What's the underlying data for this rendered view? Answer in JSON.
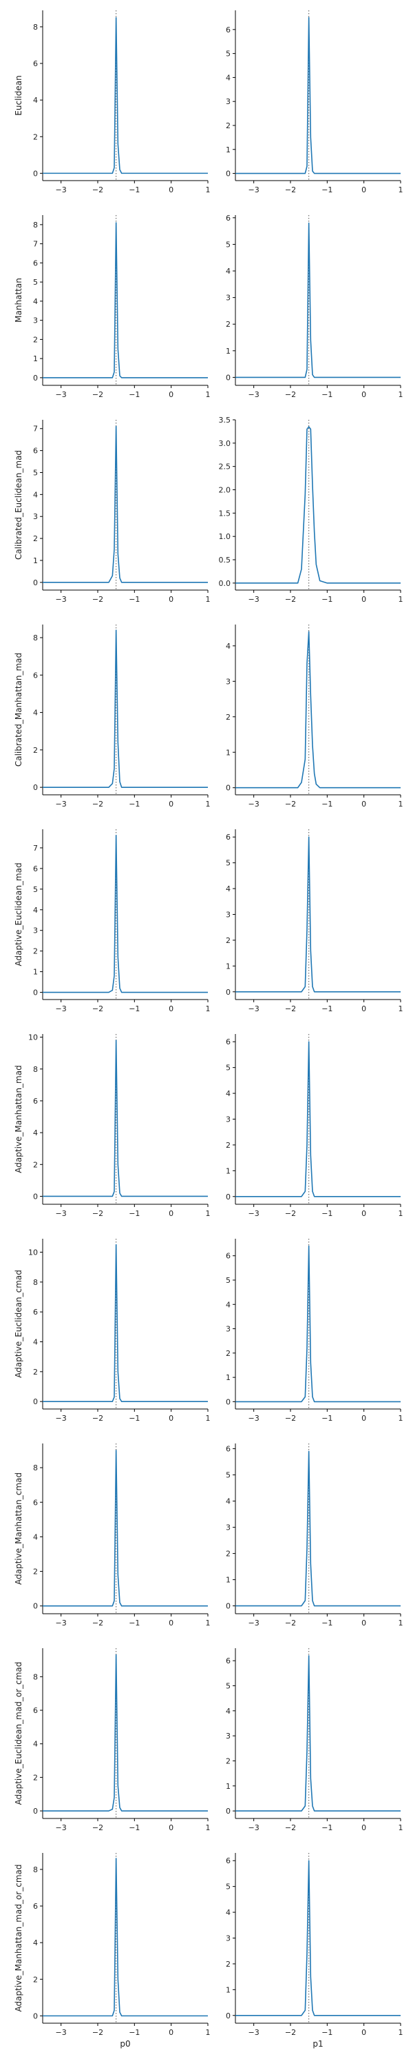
{
  "chart_data": {
    "type": "line",
    "layout": "grid 10 rows x 2 columns, shared x axis per column",
    "xlabels": [
      "p0",
      "p1"
    ],
    "x_ticks": [
      -3,
      -2,
      -1,
      0,
      1
    ],
    "xlim": [
      -3.5,
      1.0
    ],
    "reference_line": {
      "x": -1.5,
      "style": "dotted",
      "color": "#555555"
    },
    "line_color": "#1f77b4",
    "spines": "left and bottom only",
    "x": [
      -3.5,
      -2.0,
      -1.8,
      -1.7,
      -1.6,
      -1.55,
      -1.5,
      -1.45,
      -1.4,
      -1.35,
      -1.3,
      -1.2,
      -1.0,
      0.0,
      1.0
    ],
    "rows": [
      {
        "label": "Euclidean",
        "panels": [
          {
            "ylim": [
              -0.4,
              8.9
            ],
            "yticks": [
              0,
              2,
              4,
              6,
              8
            ],
            "y": [
              0,
              0,
              0,
              0,
              0,
              0.3,
              8.5,
              1.6,
              0.2,
              0,
              0,
              0,
              0,
              0,
              0
            ]
          },
          {
            "ylim": [
              -0.3,
              6.8
            ],
            "yticks": [
              0,
              1,
              2,
              3,
              4,
              5,
              6
            ],
            "y": [
              0,
              0,
              0,
              0,
              0,
              0.3,
              6.5,
              1.5,
              0.1,
              0,
              0,
              0,
              0,
              0,
              0
            ]
          }
        ]
      },
      {
        "label": "Manhattan",
        "panels": [
          {
            "ylim": [
              -0.4,
              8.5
            ],
            "yticks": [
              0,
              1,
              2,
              3,
              4,
              5,
              6,
              7,
              8
            ],
            "y": [
              0,
              0,
              0,
              0,
              0,
              0.3,
              8.1,
              1.5,
              0.1,
              0,
              0,
              0,
              0,
              0,
              0
            ]
          },
          {
            "ylim": [
              -0.3,
              6.1
            ],
            "yticks": [
              0,
              1,
              2,
              3,
              4,
              5,
              6
            ],
            "y": [
              0,
              0,
              0,
              0,
              0,
              0.3,
              5.8,
              1.4,
              0.1,
              0,
              0,
              0,
              0,
              0,
              0
            ]
          }
        ]
      },
      {
        "label": "Calibrated_Euclidean_mad",
        "panels": [
          {
            "ylim": [
              -0.35,
              7.4
            ],
            "yticks": [
              0,
              1,
              2,
              3,
              4,
              5,
              6,
              7
            ],
            "y": [
              0,
              0,
              0,
              0,
              0.3,
              1.5,
              7.1,
              1.3,
              0.2,
              0,
              0,
              0,
              0,
              0,
              0
            ]
          },
          {
            "ylim": [
              -0.15,
              3.5
            ],
            "yticks": [
              0.0,
              0.5,
              1.0,
              1.5,
              2.0,
              2.5,
              3.0,
              3.5
            ],
            "y": [
              0,
              0,
              0,
              0.3,
              1.9,
              3.3,
              3.35,
              3.3,
              2.1,
              1.1,
              0.4,
              0.05,
              0,
              0,
              0
            ]
          }
        ]
      },
      {
        "label": "Calibrated_Manhattan_mad",
        "panels": [
          {
            "ylim": [
              -0.4,
              8.7
            ],
            "yticks": [
              0,
              2,
              4,
              6,
              8
            ],
            "y": [
              0,
              0,
              0,
              0,
              0.2,
              1.0,
              8.4,
              2.4,
              0.3,
              0,
              0,
              0,
              0,
              0,
              0
            ]
          },
          {
            "ylim": [
              -0.2,
              4.6
            ],
            "yticks": [
              0,
              1,
              2,
              3,
              4
            ],
            "y": [
              0,
              0,
              0,
              0.15,
              0.8,
              3.5,
              4.4,
              2.6,
              1.2,
              0.4,
              0.1,
              0,
              0,
              0,
              0
            ]
          }
        ]
      },
      {
        "label": "Adaptive_Euclidean_mad",
        "panels": [
          {
            "ylim": [
              -0.35,
              7.9
            ],
            "yticks": [
              0,
              1,
              2,
              3,
              4,
              5,
              6,
              7
            ],
            "y": [
              0,
              0,
              0,
              0,
              0.1,
              0.8,
              7.6,
              1.7,
              0.2,
              0,
              0,
              0,
              0,
              0,
              0
            ]
          },
          {
            "ylim": [
              -0.3,
              6.3
            ],
            "yticks": [
              0,
              1,
              2,
              3,
              4,
              5,
              6
            ],
            "y": [
              0,
              0,
              0,
              0,
              0.2,
              2.4,
              6.0,
              1.6,
              0.2,
              0,
              0,
              0,
              0,
              0,
              0
            ]
          }
        ]
      },
      {
        "label": "Adaptive_Manhattan_mad",
        "panels": [
          {
            "ylim": [
              -0.5,
              10.2
            ],
            "yticks": [
              0,
              2,
              4,
              6,
              8,
              10
            ],
            "y": [
              0,
              0,
              0,
              0,
              0,
              0.3,
              9.8,
              2.0,
              0.2,
              0,
              0,
              0,
              0,
              0,
              0
            ]
          },
          {
            "ylim": [
              -0.3,
              6.3
            ],
            "yticks": [
              0,
              1,
              2,
              3,
              4,
              5,
              6
            ],
            "y": [
              0,
              0,
              0,
              0,
              0.2,
              2.0,
              6.0,
              1.6,
              0.2,
              0,
              0,
              0,
              0,
              0,
              0
            ]
          }
        ]
      },
      {
        "label": "Adaptive_Euclidean_cmad",
        "panels": [
          {
            "ylim": [
              -0.5,
              10.9
            ],
            "yticks": [
              0,
              2,
              4,
              6,
              8,
              10
            ],
            "y": [
              0,
              0,
              0,
              0,
              0,
              0.3,
              10.5,
              2.0,
              0.2,
              0,
              0,
              0,
              0,
              0,
              0
            ]
          },
          {
            "ylim": [
              -0.3,
              6.7
            ],
            "yticks": [
              0,
              1,
              2,
              3,
              4,
              5,
              6
            ],
            "y": [
              0,
              0,
              0,
              0,
              0.2,
              2.2,
              6.4,
              1.6,
              0.2,
              0,
              0,
              0,
              0,
              0,
              0
            ]
          }
        ]
      },
      {
        "label": "Adaptive_Manhattan_cmad",
        "panels": [
          {
            "ylim": [
              -0.45,
              9.4
            ],
            "yticks": [
              0,
              2,
              4,
              6,
              8
            ],
            "y": [
              0,
              0,
              0,
              0,
              0,
              0.3,
              9.0,
              1.8,
              0.2,
              0,
              0,
              0,
              0,
              0,
              0
            ]
          },
          {
            "ylim": [
              -0.3,
              6.2
            ],
            "yticks": [
              0,
              1,
              2,
              3,
              4,
              5,
              6
            ],
            "y": [
              0,
              0,
              0,
              0,
              0.2,
              2.2,
              5.9,
              1.6,
              0.2,
              0,
              0,
              0,
              0,
              0,
              0
            ]
          }
        ]
      },
      {
        "label": "Adaptive_Euclidean_mad_or_cmad",
        "panels": [
          {
            "ylim": [
              -0.45,
              9.7
            ],
            "yticks": [
              0,
              2,
              4,
              6,
              8
            ],
            "y": [
              0,
              0,
              0,
              0,
              0.1,
              0.8,
              9.3,
              1.5,
              0.2,
              0,
              0,
              0,
              0,
              0,
              0
            ]
          },
          {
            "ylim": [
              -0.3,
              6.5
            ],
            "yticks": [
              0,
              1,
              2,
              3,
              4,
              5,
              6
            ],
            "y": [
              0,
              0,
              0,
              0,
              0.2,
              2.4,
              6.2,
              1.3,
              0.2,
              0,
              0,
              0,
              0,
              0,
              0
            ]
          }
        ]
      },
      {
        "label": "Adaptive_Manhattan_mad_or_cmad",
        "panels": [
          {
            "ylim": [
              -0.4,
              8.9
            ],
            "yticks": [
              0,
              2,
              4,
              6,
              8
            ],
            "y": [
              0,
              0,
              0,
              0,
              0,
              0.3,
              8.6,
              2.0,
              0.2,
              0,
              0,
              0,
              0,
              0,
              0
            ]
          },
          {
            "ylim": [
              -0.3,
              6.3
            ],
            "yticks": [
              0,
              1,
              2,
              3,
              4,
              5,
              6
            ],
            "y": [
              0,
              0,
              0,
              0,
              0.2,
              2.4,
              6.0,
              1.5,
              0.2,
              0,
              0,
              0,
              0,
              0,
              0
            ]
          }
        ]
      }
    ]
  }
}
